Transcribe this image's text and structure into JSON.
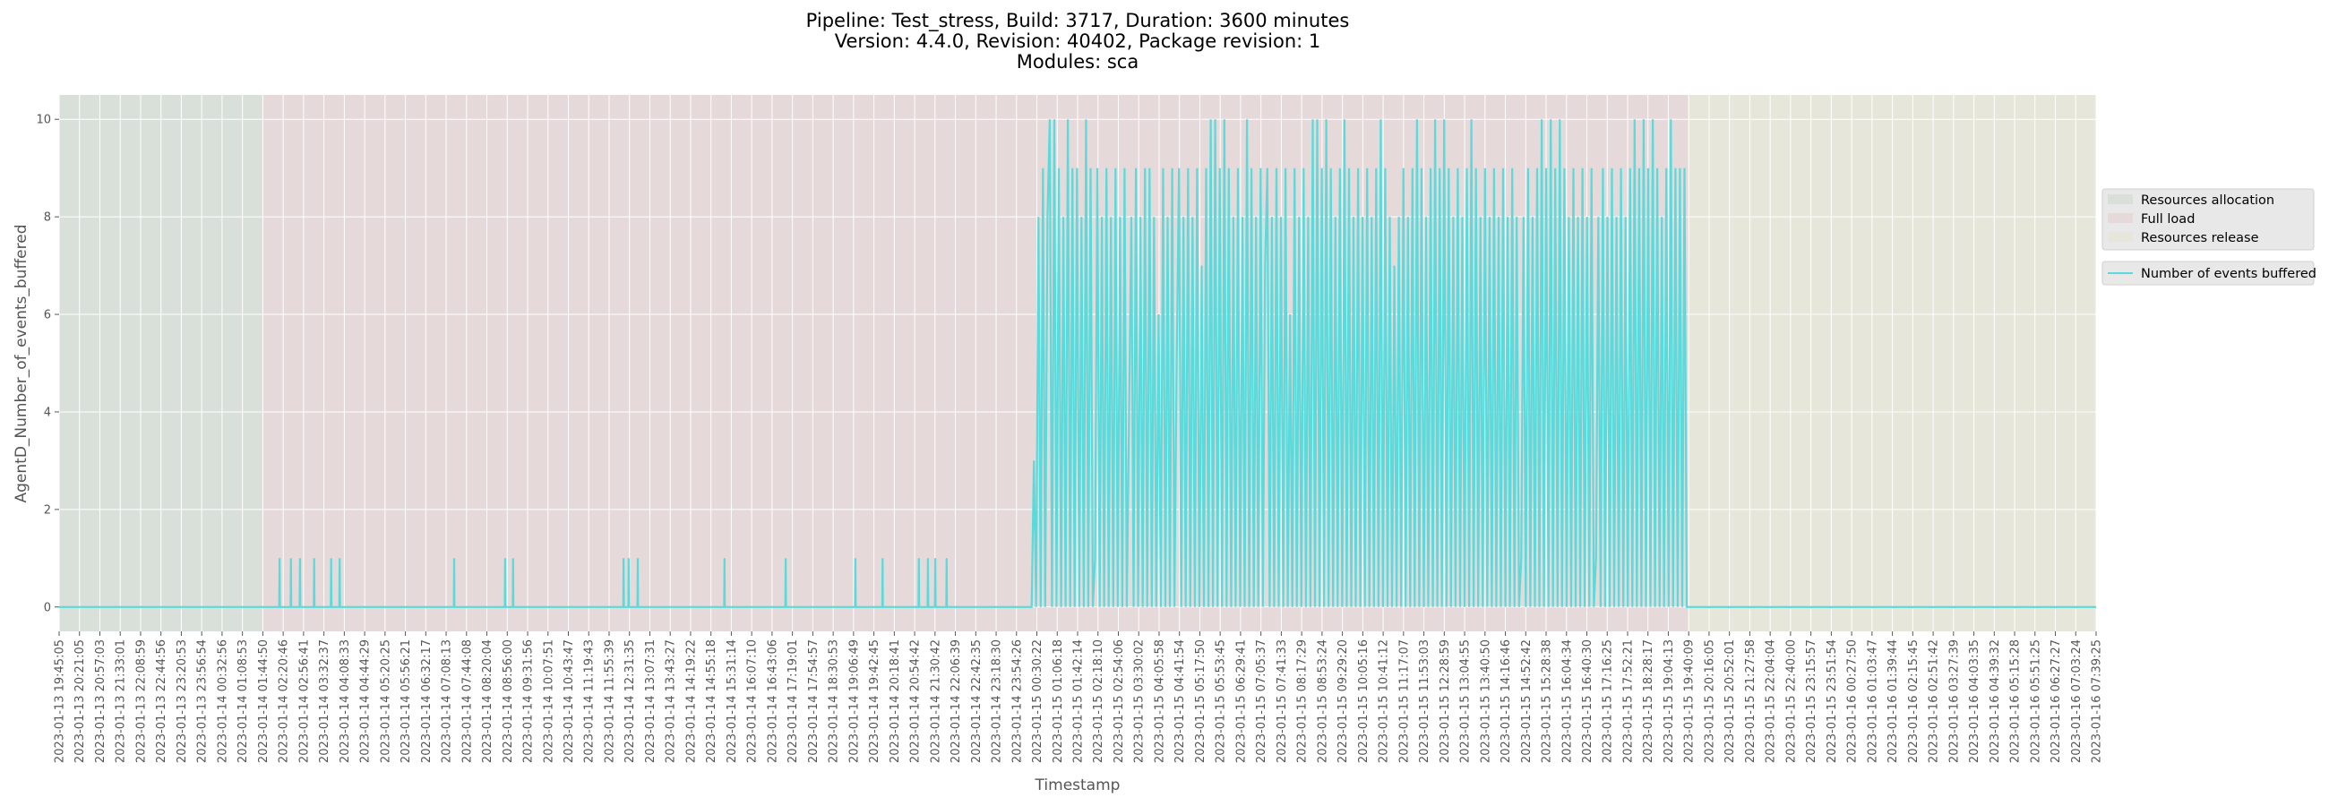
{
  "title": {
    "line1": "Pipeline: Test_stress, Build: 3717, Duration: 3600 minutes",
    "line2": "Version: 4.4.0, Revision: 40402, Package revision: 1",
    "line3": "Modules: sca"
  },
  "chart_data": {
    "type": "line",
    "xlabel": "Timestamp",
    "ylabel": "AgentD_Number_of_events_buffered",
    "x_unit": "minutes since 2023-01-13 19:45:05",
    "xlim": [
      0,
      3594.3
    ],
    "ylim": [
      -0.5,
      10.5
    ],
    "yticks": [
      0,
      2,
      4,
      6,
      8,
      10
    ],
    "grid": true,
    "legend_placement": "right-outside",
    "phases": [
      {
        "name": "Resources allocation",
        "start": 0,
        "end": 359.75,
        "color": "#d9e0da"
      },
      {
        "name": "Full load",
        "start": 359.75,
        "end": 2875.1,
        "color": "#e5d9da"
      },
      {
        "name": "Resources release",
        "start": 2875.1,
        "end": 3594.3,
        "color": "#e6e6da"
      }
    ],
    "series": [
      {
        "name": "Number of events buffered",
        "color": "#5adada",
        "baseline": 0,
        "spikes_value": 1,
        "spikes_minutes": [
          389,
          409,
          425,
          450,
          480,
          495,
          697,
          787,
          801,
          996,
          1005,
          1021,
          1174,
          1282,
          1405,
          1453,
          1517,
          1533,
          1546,
          1566
        ],
        "dense_start": 1716,
        "dense_step": 4,
        "dense_values": [
          0,
          3,
          0,
          8,
          0,
          9,
          0,
          8,
          10,
          0,
          10,
          0,
          9,
          0,
          8,
          0,
          10,
          0,
          9,
          0,
          9,
          0,
          8,
          0,
          10,
          0,
          9,
          0,
          1,
          9,
          0,
          8,
          0,
          9,
          0,
          8,
          0,
          9,
          0,
          8,
          0,
          9,
          0,
          4,
          8,
          0,
          9,
          0,
          8,
          0,
          9,
          0,
          9,
          0,
          8,
          0,
          6,
          0,
          9,
          0,
          8,
          0,
          9,
          0,
          5,
          9,
          0,
          8,
          0,
          9,
          0,
          8,
          0,
          9,
          0,
          7,
          0,
          9,
          0,
          10,
          0,
          10,
          0,
          9,
          0,
          10,
          0,
          9,
          0,
          8,
          0,
          9,
          0,
          8,
          0,
          10,
          0,
          9,
          0,
          8,
          0,
          9,
          0,
          7,
          9,
          0,
          8,
          0,
          9,
          0,
          8,
          0,
          9,
          0,
          6,
          0,
          9,
          0,
          8,
          0,
          9,
          0,
          8,
          0,
          10,
          0,
          10,
          0,
          9,
          0,
          10,
          0,
          9,
          0,
          8,
          0,
          9,
          0,
          10,
          0,
          9,
          0,
          8,
          0,
          9,
          0,
          8,
          0,
          9,
          0,
          8,
          0,
          9,
          0,
          10,
          0,
          9,
          0,
          8,
          0,
          7,
          0,
          8,
          0,
          9,
          0,
          8,
          0,
          9,
          0,
          10,
          0,
          9,
          0,
          8,
          0,
          9,
          0,
          10,
          0,
          9,
          0,
          10,
          0,
          9,
          0,
          8,
          0,
          9,
          0,
          8,
          0,
          9,
          0,
          10,
          0,
          9,
          0,
          8,
          0,
          9,
          0,
          8,
          0,
          9,
          0,
          8,
          0,
          9,
          0,
          8,
          0,
          9,
          0,
          8,
          0,
          1,
          8,
          0,
          9,
          0,
          8,
          0,
          9,
          0,
          10,
          0,
          9,
          0,
          10,
          0,
          9,
          0,
          10,
          0,
          9,
          0,
          8,
          0,
          9,
          0,
          8,
          0,
          9,
          0,
          8,
          0,
          9,
          0,
          1,
          8,
          0,
          9,
          0,
          8,
          0,
          9,
          0,
          8,
          0,
          9,
          0,
          8,
          0,
          9,
          0,
          10,
          0,
          9,
          0,
          10,
          0,
          9,
          0,
          10,
          0,
          9,
          0,
          8,
          0,
          9,
          0,
          10,
          0,
          9,
          0,
          9,
          0,
          9,
          0
        ]
      }
    ],
    "xtick_labels": [
      "2023-01-13 19:45:05",
      "2023-01-13 20:21:05",
      "2023-01-13 20:57:03",
      "2023-01-13 21:33:01",
      "2023-01-13 22:08:59",
      "2023-01-13 22:44:56",
      "2023-01-13 23:20:53",
      "2023-01-13 23:56:54",
      "2023-01-14 00:32:56",
      "2023-01-14 01:08:53",
      "2023-01-14 01:44:50",
      "2023-01-14 02:20:46",
      "2023-01-14 02:56:41",
      "2023-01-14 03:32:37",
      "2023-01-14 04:08:33",
      "2023-01-14 04:44:29",
      "2023-01-14 05:20:25",
      "2023-01-14 05:56:21",
      "2023-01-14 06:32:17",
      "2023-01-14 07:08:13",
      "2023-01-14 07:44:08",
      "2023-01-14 08:20:04",
      "2023-01-14 08:56:00",
      "2023-01-14 09:31:56",
      "2023-01-14 10:07:51",
      "2023-01-14 10:43:47",
      "2023-01-14 11:19:43",
      "2023-01-14 11:55:39",
      "2023-01-14 12:31:35",
      "2023-01-14 13:07:31",
      "2023-01-14 13:43:27",
      "2023-01-14 14:19:22",
      "2023-01-14 14:55:18",
      "2023-01-14 15:31:14",
      "2023-01-14 16:07:10",
      "2023-01-14 16:43:06",
      "2023-01-14 17:19:01",
      "2023-01-14 17:54:57",
      "2023-01-14 18:30:53",
      "2023-01-14 19:06:49",
      "2023-01-14 19:42:45",
      "2023-01-14 20:18:41",
      "2023-01-14 20:54:42",
      "2023-01-14 21:30:42",
      "2023-01-14 22:06:39",
      "2023-01-14 22:42:35",
      "2023-01-14 23:18:30",
      "2023-01-14 23:54:26",
      "2023-01-15 00:30:22",
      "2023-01-15 01:06:18",
      "2023-01-15 01:42:14",
      "2023-01-15 02:18:10",
      "2023-01-15 02:54:06",
      "2023-01-15 03:30:02",
      "2023-01-15 04:05:58",
      "2023-01-15 04:41:54",
      "2023-01-15 05:17:50",
      "2023-01-15 05:53:45",
      "2023-01-15 06:29:41",
      "2023-01-15 07:05:37",
      "2023-01-15 07:41:33",
      "2023-01-15 08:17:29",
      "2023-01-15 08:53:24",
      "2023-01-15 09:29:20",
      "2023-01-15 10:05:16",
      "2023-01-15 10:41:12",
      "2023-01-15 11:17:07",
      "2023-01-15 11:53:03",
      "2023-01-15 12:28:59",
      "2023-01-15 13:04:55",
      "2023-01-15 13:40:50",
      "2023-01-15 14:16:46",
      "2023-01-15 14:52:42",
      "2023-01-15 15:28:38",
      "2023-01-15 16:04:34",
      "2023-01-15 16:40:30",
      "2023-01-15 17:16:25",
      "2023-01-15 17:52:21",
      "2023-01-15 18:28:17",
      "2023-01-15 19:04:13",
      "2023-01-15 19:40:09",
      "2023-01-15 20:16:05",
      "2023-01-15 20:52:01",
      "2023-01-15 21:27:58",
      "2023-01-15 22:04:04",
      "2023-01-15 22:40:00",
      "2023-01-15 23:15:57",
      "2023-01-15 23:51:54",
      "2023-01-16 00:27:50",
      "2023-01-16 01:03:47",
      "2023-01-16 01:39:44",
      "2023-01-16 02:15:45",
      "2023-01-16 02:51:42",
      "2023-01-16 03:27:39",
      "2023-01-16 04:03:35",
      "2023-01-16 04:39:32",
      "2023-01-16 05:15:28",
      "2023-01-16 05:51:25",
      "2023-01-16 06:27:27",
      "2023-01-16 07:03:24",
      "2023-01-16 07:39:25"
    ],
    "legend": {
      "phases": [
        "Resources allocation",
        "Full load",
        "Resources release"
      ],
      "lines": [
        "Number of events buffered"
      ]
    }
  }
}
